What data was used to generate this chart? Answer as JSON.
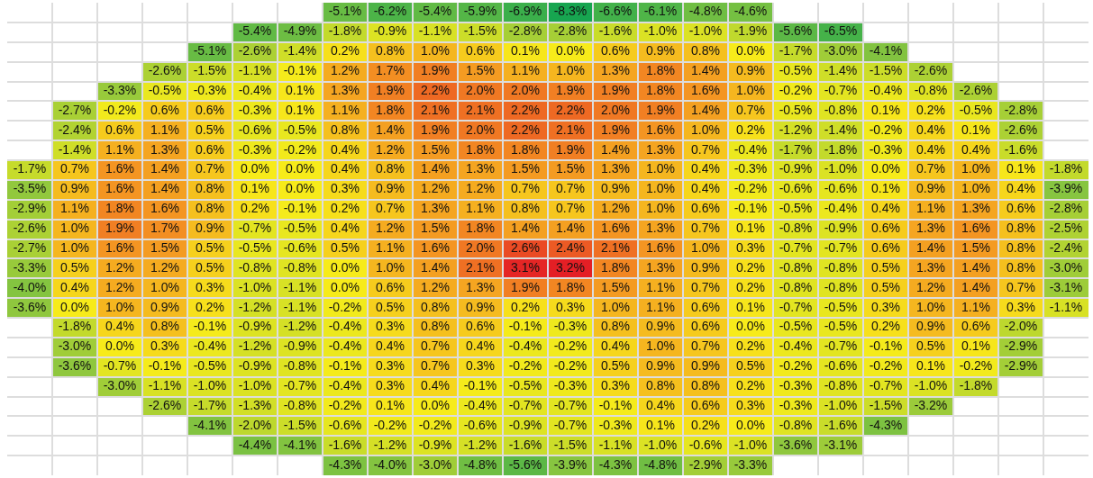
{
  "chart_data": {
    "type": "heatmap",
    "grid": true,
    "categories": [
      null,
      null,
      null,
      null,
      null,
      null,
      null,
      null,
      null,
      null,
      null,
      null,
      null,
      null,
      null,
      null,
      null,
      null,
      null,
      null,
      null,
      null,
      null,
      null
    ],
    "y_categories": [
      null,
      null,
      null,
      null,
      null,
      null,
      null,
      null,
      null,
      null,
      null,
      null,
      null,
      null,
      null,
      null,
      null,
      null,
      null,
      null,
      null,
      null,
      null,
      null
    ],
    "cells": [
      [
        null,
        null,
        null,
        null,
        null,
        null,
        null,
        -5.1,
        -6.2,
        -5.4,
        -5.9,
        -6.9,
        -8.3,
        -6.6,
        -6.1,
        -4.8,
        -4.6,
        null,
        null,
        null,
        null,
        null,
        null,
        null
      ],
      [
        null,
        null,
        null,
        null,
        null,
        -5.4,
        -4.9,
        -1.8,
        -0.9,
        -1.1,
        -1.5,
        -2.8,
        -2.8,
        -1.6,
        -1.0,
        -1.0,
        -1.9,
        -5.6,
        -6.5,
        null,
        null,
        null,
        null,
        null
      ],
      [
        null,
        null,
        null,
        null,
        -5.1,
        -2.6,
        -1.4,
        0.2,
        0.8,
        1.0,
        0.6,
        0.1,
        0.0,
        0.6,
        0.9,
        0.8,
        0.0,
        -1.7,
        -3.0,
        -4.1,
        null,
        null,
        null,
        null
      ],
      [
        null,
        null,
        null,
        -2.6,
        -1.5,
        -1.1,
        -0.1,
        1.2,
        1.7,
        1.9,
        1.5,
        1.1,
        1.0,
        1.3,
        1.8,
        1.4,
        0.9,
        -0.5,
        -1.4,
        -1.5,
        -2.6,
        null,
        null,
        null
      ],
      [
        null,
        null,
        -3.3,
        -0.5,
        -0.3,
        -0.4,
        0.1,
        1.3,
        1.9,
        2.2,
        2.0,
        2.0,
        1.9,
        1.9,
        1.8,
        1.6,
        1.0,
        -0.2,
        -0.7,
        -0.4,
        -0.8,
        -2.6,
        null,
        null
      ],
      [
        null,
        -2.7,
        -0.2,
        0.6,
        0.6,
        -0.3,
        0.1,
        1.1,
        1.8,
        2.1,
        2.1,
        2.2,
        2.2,
        2.0,
        1.9,
        1.4,
        0.7,
        -0.5,
        -0.8,
        0.1,
        0.2,
        -0.5,
        -2.8,
        null
      ],
      [
        null,
        -2.4,
        0.6,
        1.1,
        0.5,
        -0.6,
        -0.5,
        0.8,
        1.4,
        1.9,
        2.0,
        2.2,
        2.1,
        1.9,
        1.6,
        1.0,
        0.2,
        -1.2,
        -1.4,
        -0.2,
        0.4,
        0.1,
        -2.6,
        null
      ],
      [
        null,
        -1.4,
        1.1,
        1.3,
        0.6,
        -0.3,
        -0.2,
        0.4,
        1.2,
        1.5,
        1.8,
        1.8,
        1.9,
        1.4,
        1.3,
        0.7,
        -0.4,
        -1.7,
        -1.8,
        -0.3,
        0.4,
        0.4,
        -1.6,
        null
      ],
      [
        -1.7,
        0.7,
        1.6,
        1.4,
        0.7,
        0.0,
        0.0,
        0.4,
        0.8,
        1.4,
        1.3,
        1.5,
        1.5,
        1.3,
        1.0,
        0.4,
        -0.3,
        -0.9,
        -1.0,
        0.0,
        0.7,
        1.0,
        0.1,
        -1.8
      ],
      [
        -3.5,
        0.9,
        1.6,
        1.4,
        0.8,
        0.1,
        0.0,
        0.3,
        0.9,
        1.2,
        1.2,
        0.7,
        0.7,
        0.9,
        1.0,
        0.4,
        -0.2,
        -0.6,
        -0.6,
        0.1,
        0.9,
        1.0,
        0.4,
        -3.9
      ],
      [
        -2.9,
        1.1,
        1.8,
        1.6,
        0.8,
        0.2,
        -0.1,
        0.2,
        0.7,
        1.3,
        1.1,
        0.8,
        0.7,
        1.2,
        1.0,
        0.6,
        -0.1,
        -0.5,
        -0.4,
        0.4,
        1.1,
        1.3,
        0.6,
        -2.8
      ],
      [
        -2.6,
        1.0,
        1.9,
        1.7,
        0.9,
        -0.7,
        -0.5,
        0.4,
        1.2,
        1.5,
        1.8,
        1.4,
        1.4,
        1.6,
        1.3,
        0.7,
        0.1,
        -0.8,
        -0.9,
        0.6,
        1.3,
        1.6,
        0.8,
        -2.5
      ],
      [
        -2.7,
        1.0,
        1.6,
        1.5,
        0.5,
        -0.5,
        -0.6,
        0.5,
        1.1,
        1.6,
        2.0,
        2.6,
        2.4,
        2.1,
        1.6,
        1.0,
        0.3,
        -0.7,
        -0.7,
        0.6,
        1.4,
        1.5,
        0.8,
        -2.4
      ],
      [
        -3.3,
        0.5,
        1.2,
        1.2,
        0.5,
        -0.8,
        -0.8,
        0.0,
        1.0,
        1.4,
        2.1,
        3.1,
        3.2,
        1.8,
        1.3,
        0.9,
        0.2,
        -0.8,
        -0.8,
        0.5,
        1.3,
        1.4,
        0.8,
        -3.0
      ],
      [
        -4.0,
        0.4,
        1.2,
        1.0,
        0.3,
        -1.0,
        -1.1,
        0.0,
        0.6,
        1.2,
        1.3,
        1.9,
        1.8,
        1.5,
        1.1,
        0.7,
        0.2,
        -0.8,
        -0.8,
        0.5,
        1.2,
        1.4,
        0.7,
        -3.1
      ],
      [
        -3.6,
        0.0,
        1.0,
        0.9,
        0.2,
        -1.2,
        -1.1,
        -0.2,
        0.5,
        0.8,
        0.9,
        0.2,
        0.3,
        1.0,
        1.1,
        0.6,
        0.1,
        -0.7,
        -0.5,
        0.3,
        1.0,
        1.1,
        0.3,
        -1.1
      ],
      [
        null,
        -1.8,
        0.4,
        0.8,
        -0.1,
        -0.9,
        -1.2,
        -0.4,
        0.3,
        0.8,
        0.6,
        -0.1,
        -0.3,
        0.8,
        0.9,
        0.6,
        0.0,
        -0.5,
        -0.5,
        0.2,
        0.9,
        0.6,
        -2.0,
        null
      ],
      [
        null,
        -3.0,
        0.0,
        0.3,
        -0.4,
        -1.2,
        -0.9,
        -0.4,
        0.4,
        0.7,
        0.4,
        -0.4,
        -0.2,
        0.4,
        1.0,
        0.7,
        0.2,
        -0.4,
        -0.7,
        -0.1,
        0.5,
        0.1,
        -2.9,
        null
      ],
      [
        null,
        -3.6,
        -0.7,
        -0.1,
        -0.5,
        -0.9,
        -0.8,
        -0.1,
        0.3,
        0.7,
        0.3,
        -0.2,
        -0.2,
        0.5,
        0.9,
        0.9,
        0.5,
        -0.2,
        -0.6,
        -0.2,
        0.1,
        -0.2,
        -2.9,
        null
      ],
      [
        null,
        null,
        -3.0,
        -1.1,
        -1.0,
        -1.0,
        -0.7,
        -0.4,
        0.3,
        0.4,
        -0.1,
        -0.5,
        -0.3,
        0.3,
        0.8,
        0.8,
        0.2,
        -0.3,
        -0.8,
        -0.7,
        -1.0,
        -1.8,
        null,
        null
      ],
      [
        null,
        null,
        null,
        -2.6,
        -1.7,
        -1.3,
        -0.8,
        -0.2,
        0.1,
        0.0,
        -0.4,
        -0.7,
        -0.7,
        -0.1,
        0.4,
        0.6,
        0.3,
        -0.3,
        -1.0,
        -1.5,
        -3.2,
        null,
        null,
        null
      ],
      [
        null,
        null,
        null,
        null,
        -4.1,
        -2.0,
        -1.5,
        -0.6,
        -0.2,
        -0.2,
        -0.6,
        -0.9,
        -0.7,
        -0.3,
        0.1,
        0.2,
        0.0,
        -0.8,
        -1.6,
        -4.3,
        null,
        null,
        null,
        null
      ],
      [
        null,
        null,
        null,
        null,
        null,
        -4.4,
        -4.1,
        -1.6,
        -1.2,
        -0.9,
        -1.2,
        -1.6,
        -1.5,
        -1.1,
        -1.0,
        -0.6,
        -1.0,
        -3.6,
        -3.1,
        null,
        null,
        null,
        null,
        null
      ],
      [
        null,
        null,
        null,
        null,
        null,
        null,
        null,
        -4.3,
        -4.0,
        -3.0,
        -4.8,
        -5.6,
        -3.9,
        -4.3,
        -4.8,
        -2.9,
        -3.3,
        null,
        null,
        null,
        null,
        null,
        null,
        null
      ]
    ],
    "cell_labels": [
      [
        null,
        null,
        null,
        null,
        null,
        null,
        null,
        "-5.1%",
        "-6.2%",
        "-5.4%",
        "-5.9%",
        "-6.9%",
        "-8.3%",
        "-6.6%",
        "-6.1%",
        "-4.8%",
        "-4.6%",
        null,
        null,
        null,
        null,
        null,
        null,
        null
      ],
      [
        null,
        null,
        null,
        null,
        null,
        "-5.4%",
        "-4.9%",
        "-1.8%",
        "-0.9%",
        "-1.1%",
        "-1.5%",
        "-2.8%",
        "-2.8%",
        "-1.6%",
        "-1.0%",
        "-1.0%",
        "-1.9%",
        "-5.6%",
        "-6.5%",
        null,
        null,
        null,
        null,
        null
      ],
      [
        null,
        null,
        null,
        null,
        "-5.1%",
        "-2.6%",
        "-1.4%",
        "0.2%",
        "0.8%",
        "1.0%",
        "0.6%",
        "0.1%",
        "0.0%",
        "0.6%",
        "0.9%",
        "0.8%",
        "0.0%",
        "-1.7%",
        "-3.0%",
        "-4.1%",
        null,
        null,
        null,
        null
      ],
      [
        null,
        null,
        null,
        "-2.6%",
        "-1.5%",
        "-1.1%",
        "-0.1%",
        "1.2%",
        "1.7%",
        "1.9%",
        "1.5%",
        "1.1%",
        "1.0%",
        "1.3%",
        "1.8%",
        "1.4%",
        "0.9%",
        "-0.5%",
        "-1.4%",
        "-1.5%",
        "-2.6%",
        null,
        null,
        null
      ],
      [
        null,
        null,
        "-3.3%",
        "-0.5%",
        "-0.3%",
        "-0.4%",
        "0.1%",
        "1.3%",
        "1.9%",
        "2.2%",
        "2.0%",
        "2.0%",
        "1.9%",
        "1.9%",
        "1.8%",
        "1.6%",
        "1.0%",
        "-0.2%",
        "-0.7%",
        "-0.4%",
        "-0.8%",
        "-2.6%",
        null,
        null
      ],
      [
        null,
        "-2.7%",
        "-0.2%",
        "0.6%",
        "0.6%",
        "-0.3%",
        "0.1%",
        "1.1%",
        "1.8%",
        "2.1%",
        "2.1%",
        "2.2%",
        "2.2%",
        "2.0%",
        "1.9%",
        "1.4%",
        "0.7%",
        "-0.5%",
        "-0.8%",
        "0.1%",
        "0.2%",
        "-0.5%",
        "-2.8%",
        null
      ],
      [
        null,
        "-2.4%",
        "0.6%",
        "1.1%",
        "0.5%",
        "-0.6%",
        "-0.5%",
        "0.8%",
        "1.4%",
        "1.9%",
        "2.0%",
        "2.2%",
        "2.1%",
        "1.9%",
        "1.6%",
        "1.0%",
        "0.2%",
        "-1.2%",
        "-1.4%",
        "-0.2%",
        "0.4%",
        "0.1%",
        "-2.6%",
        null
      ],
      [
        null,
        "-1.4%",
        "1.1%",
        "1.3%",
        "0.6%",
        "-0.3%",
        "-0.2%",
        "0.4%",
        "1.2%",
        "1.5%",
        "1.8%",
        "1.8%",
        "1.9%",
        "1.4%",
        "1.3%",
        "0.7%",
        "-0.4%",
        "-1.7%",
        "-1.8%",
        "-0.3%",
        "0.4%",
        "0.4%",
        "-1.6%",
        null
      ],
      [
        "-1.7%",
        "0.7%",
        "1.6%",
        "1.4%",
        "0.7%",
        "0.0%",
        "0.0%",
        "0.4%",
        "0.8%",
        "1.4%",
        "1.3%",
        "1.5%",
        "1.5%",
        "1.3%",
        "1.0%",
        "0.4%",
        "-0.3%",
        "-0.9%",
        "-1.0%",
        "0.0%",
        "0.7%",
        "1.0%",
        "0.1%",
        "-1.8%"
      ],
      [
        "-3.5%",
        "0.9%",
        "1.6%",
        "1.4%",
        "0.8%",
        "0.1%",
        "0.0%",
        "0.3%",
        "0.9%",
        "1.2%",
        "1.2%",
        "0.7%",
        "0.7%",
        "0.9%",
        "1.0%",
        "0.4%",
        "-0.2%",
        "-0.6%",
        "-0.6%",
        "0.1%",
        "0.9%",
        "1.0%",
        "0.4%",
        "-3.9%"
      ],
      [
        "-2.9%",
        "1.1%",
        "1.8%",
        "1.6%",
        "0.8%",
        "0.2%",
        "-0.1%",
        "0.2%",
        "0.7%",
        "1.3%",
        "1.1%",
        "0.8%",
        "0.7%",
        "1.2%",
        "1.0%",
        "0.6%",
        "-0.1%",
        "-0.5%",
        "-0.4%",
        "0.4%",
        "1.1%",
        "1.3%",
        "0.6%",
        "-2.8%"
      ],
      [
        "-2.6%",
        "1.0%",
        "1.9%",
        "1.7%",
        "0.9%",
        "-0.7%",
        "-0.5%",
        "0.4%",
        "1.2%",
        "1.5%",
        "1.8%",
        "1.4%",
        "1.4%",
        "1.6%",
        "1.3%",
        "0.7%",
        "0.1%",
        "-0.8%",
        "-0.9%",
        "0.6%",
        "1.3%",
        "1.6%",
        "0.8%",
        "-2.5%"
      ],
      [
        "-2.7%",
        "1.0%",
        "1.6%",
        "1.5%",
        "0.5%",
        "-0.5%",
        "-0.6%",
        "0.5%",
        "1.1%",
        "1.6%",
        "2.0%",
        "2.6%",
        "2.4%",
        "2.1%",
        "1.6%",
        "1.0%",
        "0.3%",
        "-0.7%",
        "-0.7%",
        "0.6%",
        "1.4%",
        "1.5%",
        "0.8%",
        "-2.4%"
      ],
      [
        "-3.3%",
        "0.5%",
        "1.2%",
        "1.2%",
        "0.5%",
        "-0.8%",
        "-0.8%",
        "0.0%",
        "1.0%",
        "1.4%",
        "2.1%",
        "3.1%",
        "3.2%",
        "1.8%",
        "1.3%",
        "0.9%",
        "0.2%",
        "-0.8%",
        "-0.8%",
        "0.5%",
        "1.3%",
        "1.4%",
        "0.8%",
        "-3.0%"
      ],
      [
        "-4.0%",
        "0.4%",
        "1.2%",
        "1.0%",
        "0.3%",
        "-1.0%",
        "-1.1%",
        "0.0%",
        "0.6%",
        "1.2%",
        "1.3%",
        "1.9%",
        "1.8%",
        "1.5%",
        "1.1%",
        "0.7%",
        "0.2%",
        "-0.8%",
        "-0.8%",
        "0.5%",
        "1.2%",
        "1.4%",
        "0.7%",
        "-3.1%"
      ],
      [
        "-3.6%",
        "0.0%",
        "1.0%",
        "0.9%",
        "0.2%",
        "-1.2%",
        "-1.1%",
        "-0.2%",
        "0.5%",
        "0.8%",
        "0.9%",
        "0.2%",
        "0.3%",
        "1.0%",
        "1.1%",
        "0.6%",
        "0.1%",
        "-0.7%",
        "-0.5%",
        "0.3%",
        "1.0%",
        "1.1%",
        "0.3%",
        "-1.1%"
      ],
      [
        null,
        "-1.8%",
        "0.4%",
        "0.8%",
        "-0.1%",
        "-0.9%",
        "-1.2%",
        "-0.4%",
        "0.3%",
        "0.8%",
        "0.6%",
        "-0.1%",
        "-0.3%",
        "0.8%",
        "0.9%",
        "0.6%",
        "0.0%",
        "-0.5%",
        "-0.5%",
        "0.2%",
        "0.9%",
        "0.6%",
        "-2.0%",
        null
      ],
      [
        null,
        "-3.0%",
        "0.0%",
        "0.3%",
        "-0.4%",
        "-1.2%",
        "-0.9%",
        "-0.4%",
        "0.4%",
        "0.7%",
        "0.4%",
        "-0.4%",
        "-0.2%",
        "0.4%",
        "1.0%",
        "0.7%",
        "0.2%",
        "-0.4%",
        "-0.7%",
        "-0.1%",
        "0.5%",
        "0.1%",
        "-2.9%",
        null
      ],
      [
        null,
        "-3.6%",
        "-0.7%",
        "-0.1%",
        "-0.5%",
        "-0.9%",
        "-0.8%",
        "-0.1%",
        "0.3%",
        "0.7%",
        "0.3%",
        "-0.2%",
        "-0.2%",
        "0.5%",
        "0.9%",
        "0.9%",
        "0.5%",
        "-0.2%",
        "-0.6%",
        "-0.2%",
        "0.1%",
        "-0.2%",
        "-2.9%",
        null
      ],
      [
        null,
        null,
        "-3.0%",
        "-1.1%",
        "-1.0%",
        "-1.0%",
        "-0.7%",
        "-0.4%",
        "0.3%",
        "0.4%",
        "-0.1%",
        "-0.5%",
        "-0.3%",
        "0.3%",
        "0.8%",
        "0.8%",
        "0.2%",
        "-0.3%",
        "-0.8%",
        "-0.7%",
        "-1.0%",
        "-1.8%",
        null,
        null
      ],
      [
        null,
        null,
        null,
        "-2.6%",
        "-1.7%",
        "-1.3%",
        "-0.8%",
        "-0.2%",
        "0.1%",
        "0.0%",
        "-0.4%",
        "-0.7%",
        "-0.7%",
        "-0.1%",
        "0.4%",
        "0.6%",
        "0.3%",
        "-0.3%",
        "-1.0%",
        "-1.5%",
        "-3.2%",
        null,
        null,
        null
      ],
      [
        null,
        null,
        null,
        null,
        "-4.1%",
        "-2.0%",
        "-1.5%",
        "-0.6%",
        "-0.2%",
        "-0.2%",
        "-0.6%",
        "-0.9%",
        "-0.7%",
        "-0.3%",
        "0.1%",
        "0.2%",
        "0.0%",
        "-0.8%",
        "-1.6%",
        "-4.3%",
        null,
        null,
        null,
        null
      ],
      [
        null,
        null,
        null,
        null,
        null,
        "-4.4%",
        "-4.1%",
        "-1.6%",
        "-1.2%",
        "-0.9%",
        "-1.2%",
        "-1.6%",
        "-1.5%",
        "-1.1%",
        "-1.0%",
        "-0.6%",
        "-1.0%",
        "-3.6%",
        "-3.1%",
        null,
        null,
        null,
        null,
        null
      ],
      [
        null,
        null,
        null,
        null,
        null,
        null,
        null,
        "-4.3%",
        "-4.0%",
        "-3.0%",
        "-4.8%",
        "-5.6%",
        "-3.9%",
        "-4.3%",
        "-4.8%",
        "-2.9%",
        "-3.3%",
        null,
        null,
        null,
        null,
        null,
        null,
        null
      ]
    ]
  }
}
